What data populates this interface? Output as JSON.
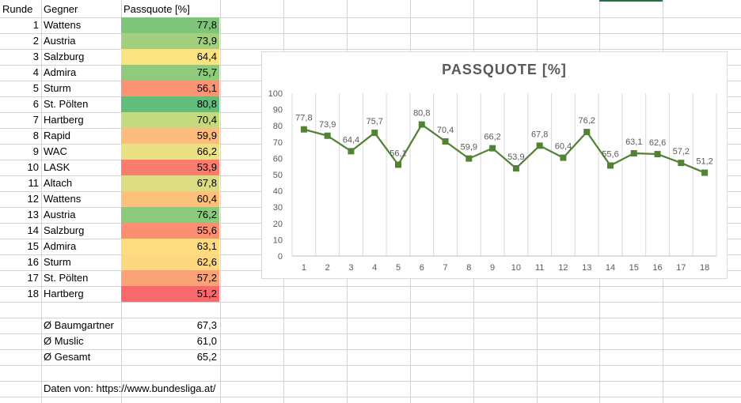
{
  "headers": {
    "runde": "Runde",
    "gegner": "Gegner",
    "passquote": "Passquote [%]"
  },
  "rows": [
    {
      "runde": "1",
      "gegner": "Wattens",
      "quote": "77,8",
      "color": "#7ec57a"
    },
    {
      "runde": "2",
      "gegner": "Austria",
      "quote": "73,9",
      "color": "#a3d07f"
    },
    {
      "runde": "3",
      "gegner": "Salzburg",
      "quote": "64,4",
      "color": "#fbe382"
    },
    {
      "runde": "4",
      "gegner": "Admira",
      "quote": "75,7",
      "color": "#90ca7c"
    },
    {
      "runde": "5",
      "gegner": "Sturm",
      "quote": "56,1",
      "color": "#fa9473"
    },
    {
      "runde": "6",
      "gegner": "St. Pölten",
      "quote": "80,8",
      "color": "#63be7b"
    },
    {
      "runde": "7",
      "gegner": "Hartberg",
      "quote": "70,4",
      "color": "#c4d980"
    },
    {
      "runde": "8",
      "gegner": "Rapid",
      "quote": "59,9",
      "color": "#fcbc7b"
    },
    {
      "runde": "9",
      "gegner": "WAC",
      "quote": "66,2",
      "color": "#ebe183"
    },
    {
      "runde": "10",
      "gegner": "LASK",
      "quote": "53,9",
      "color": "#f97d6e"
    },
    {
      "runde": "11",
      "gegner": "Altach",
      "quote": "67,8",
      "color": "#dcdd82"
    },
    {
      "runde": "12",
      "gegner": "Wattens",
      "quote": "60,4",
      "color": "#fdc17c"
    },
    {
      "runde": "13",
      "gegner": "Austria",
      "quote": "76,2",
      "color": "#8bc97c"
    },
    {
      "runde": "14",
      "gegner": "Salzburg",
      "quote": "55,6",
      "color": "#fa8f72"
    },
    {
      "runde": "15",
      "gegner": "Admira",
      "quote": "63,1",
      "color": "#fedd81"
    },
    {
      "runde": "16",
      "gegner": "Sturm",
      "quote": "62,6",
      "color": "#fed880"
    },
    {
      "runde": "17",
      "gegner": "St. Pölten",
      "quote": "57,2",
      "color": "#fba276"
    },
    {
      "runde": "18",
      "gegner": "Hartberg",
      "quote": "51,2",
      "color": "#f8696b"
    }
  ],
  "summary": [
    {
      "label": "Ø Baumgartner",
      "value": "67,3"
    },
    {
      "label": "Ø Muslic",
      "value": "61,0"
    },
    {
      "label": "Ø Gesamt",
      "value": "65,2"
    }
  ],
  "source_note": "Daten von: https://www.bundesliga.at/",
  "chart_data": {
    "type": "line",
    "title": "PASSQUOTE [%]",
    "categories": [
      "1",
      "2",
      "3",
      "4",
      "5",
      "6",
      "7",
      "8",
      "9",
      "10",
      "11",
      "12",
      "13",
      "14",
      "15",
      "16",
      "17",
      "18"
    ],
    "values": [
      77.8,
      73.9,
      64.4,
      75.7,
      56.1,
      80.8,
      70.4,
      59.9,
      66.2,
      53.9,
      67.8,
      60.4,
      76.2,
      55.6,
      63.1,
      62.6,
      57.2,
      51.2
    ],
    "data_labels": [
      "77,8",
      "73,9",
      "64,4",
      "75,7",
      "56,1",
      "80,8",
      "70,4",
      "59,9",
      "66,2",
      "53,9",
      "67,8",
      "60,4",
      "76,2",
      "55,6",
      "63,1",
      "62,6",
      "57,2",
      "51,2"
    ],
    "ylim": [
      0,
      100
    ],
    "yticks": [
      "0",
      "10",
      "20",
      "30",
      "40",
      "50",
      "60",
      "70",
      "80",
      "90",
      "100"
    ],
    "grid": "vertical",
    "line_color": "#548235"
  }
}
